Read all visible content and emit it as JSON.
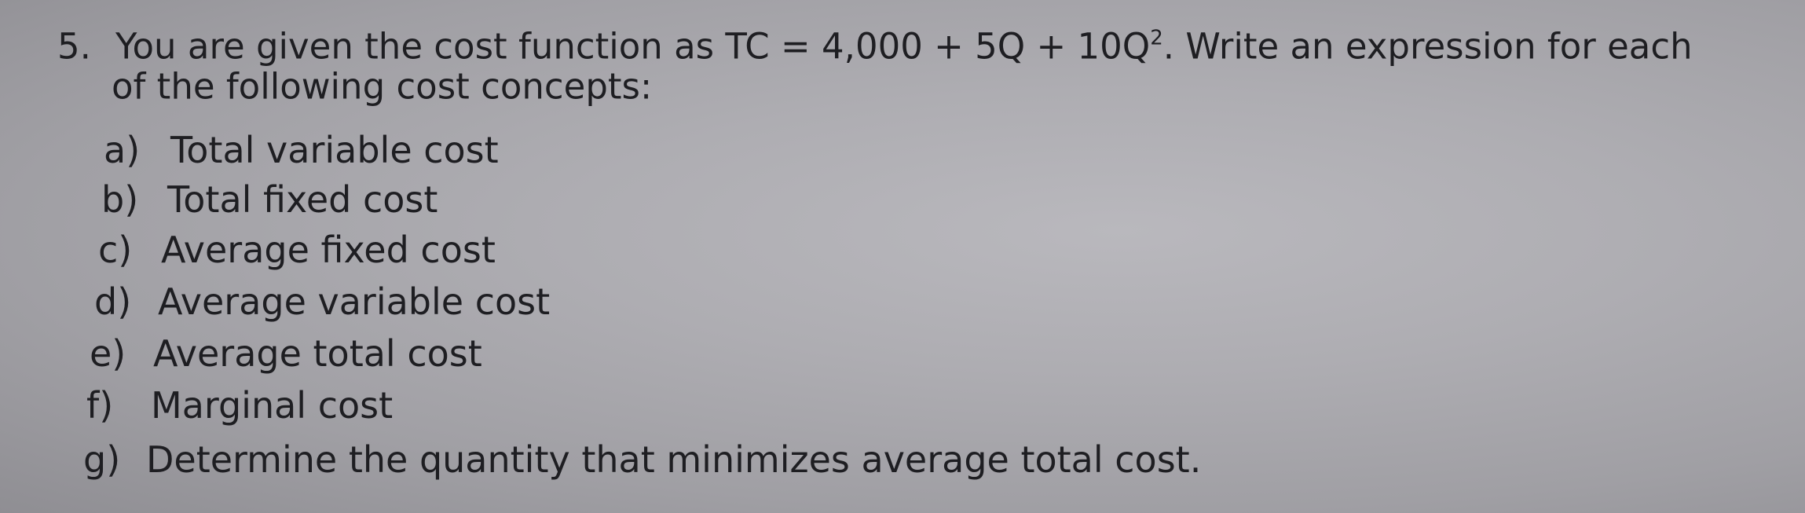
{
  "question": {
    "number": "5.",
    "text_before_sup": "You are given the cost function as TC = 4,000 + 5Q + 10Q",
    "sup": "2",
    "text_after_sup": ". Write an expression for each",
    "continuation": "of the following cost concepts:"
  },
  "items": [
    {
      "letter": "a)",
      "text": "Total variable cost"
    },
    {
      "letter": "b)",
      "text": "Total fixed cost"
    },
    {
      "letter": "c)",
      "text": "Average fixed cost"
    },
    {
      "letter": "d)",
      "text": "Average variable cost"
    },
    {
      "letter": "e)",
      "text": "Average total cost"
    },
    {
      "letter": "f)",
      "text": "Marginal cost"
    },
    {
      "letter": "g)",
      "text": "Determine the quantity that minimizes average total cost."
    }
  ]
}
